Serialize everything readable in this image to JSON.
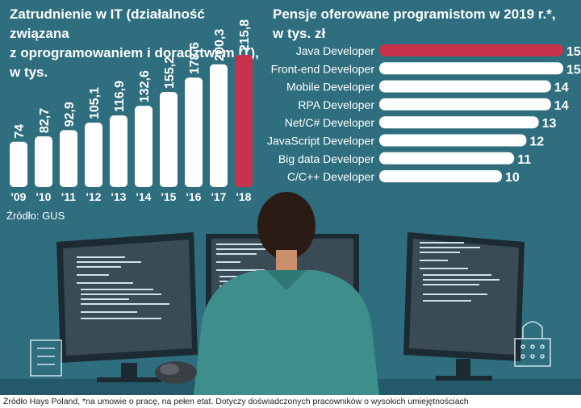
{
  "left_chart": {
    "title": "Zatrudnienie w IT (działalność związana\nz oprogramowaniem i doradztwem IT),\nw tys.",
    "source": "Źródło: GUS"
  },
  "right_chart": {
    "title": "Pensje oferowane programistom w 2019 r.*,\nw tys. zł"
  },
  "footer": "Źródło Hays Poland, *na umowie o pracę, na pełen etat. Dotyczy doświadczonych  pracowników o wysokich umiejętnościach",
  "colors": {
    "background": "#2e6e7e",
    "bar": "#ffffff",
    "highlight": "#c8324a",
    "text": "#ffffff"
  },
  "chart_data": [
    {
      "type": "bar",
      "title": "Zatrudnienie w IT (działalność związana z oprogramowaniem i doradztwem IT), w tys.",
      "categories": [
        "'09",
        "'10",
        "'11",
        "'12",
        "'13",
        "'14",
        "'15",
        "'16",
        "'17",
        "'18"
      ],
      "values": [
        74,
        82.7,
        92.9,
        105.1,
        116.9,
        132.6,
        155.2,
        178.6,
        200.3,
        215.8
      ],
      "labels": [
        "74",
        "82,7",
        "92,9",
        "105,1",
        "116,9",
        "132,6",
        "155,2",
        "178,6",
        "200,3",
        "215,8"
      ],
      "highlight_index": 9,
      "orientation": "vertical"
    },
    {
      "type": "bar",
      "title": "Pensje oferowane programistom w 2019 r.*, w tys. zł",
      "categories": [
        "Java Developer",
        "Front-end Developer",
        "Mobile Developer",
        "RPA Developer",
        "Net/C# Developer",
        "JavaScript Developer",
        "Big data Developer",
        "C/C++ Developer"
      ],
      "values": [
        15,
        15,
        14,
        14,
        13,
        12,
        11,
        10
      ],
      "labels": [
        "15",
        "15",
        "14",
        "14",
        "13",
        "12",
        "11",
        "10"
      ],
      "highlight_index": 0,
      "orientation": "horizontal"
    }
  ]
}
